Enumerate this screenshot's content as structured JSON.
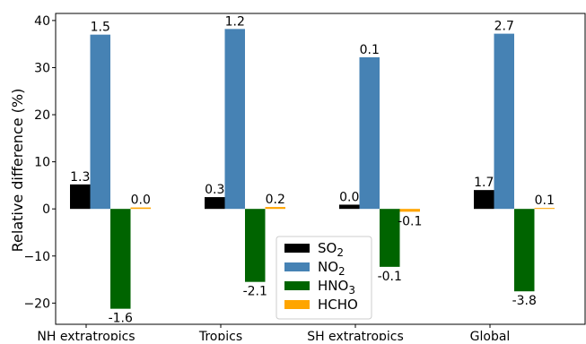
{
  "chart_data": {
    "type": "bar",
    "categories": [
      "NH extratropics",
      "Tropics",
      "SH extratropics",
      "Global"
    ],
    "ylabel": "Relative difference (%)",
    "ylim": [
      -24.5,
      41.5
    ],
    "yticks": [
      -20,
      -10,
      0,
      10,
      20,
      30,
      40
    ],
    "ytick_labels": [
      "−20",
      "−10",
      "0",
      "10",
      "20",
      "30",
      "40"
    ],
    "grid": false,
    "legend_position": "lower center",
    "series": [
      {
        "name": "SO2",
        "legend_base": "SO",
        "legend_sub": "2",
        "color": "#000000",
        "values": [
          5.2,
          2.5,
          0.9,
          4.0
        ],
        "labels": [
          "1.3",
          "0.3",
          "0.0",
          "1.7"
        ]
      },
      {
        "name": "NO2",
        "legend_base": "NO",
        "legend_sub": "2",
        "color": "#4682b4",
        "values": [
          37.0,
          38.2,
          32.2,
          37.2
        ],
        "labels": [
          "1.5",
          "1.2",
          "0.1",
          "2.7"
        ]
      },
      {
        "name": "HNO3",
        "legend_base": "HNO",
        "legend_sub": "3",
        "color": "#006400",
        "values": [
          -21.2,
          -15.5,
          -12.3,
          -17.5
        ],
        "labels": [
          "-1.6",
          "-2.1",
          "-0.1",
          "-3.8"
        ]
      },
      {
        "name": "HCHO",
        "legend_base": "HCHO",
        "legend_sub": "",
        "color": "#ffa500",
        "values": [
          0.3,
          0.4,
          -0.6,
          0.2
        ],
        "labels": [
          "0.0",
          "0.2",
          "-0.1",
          "0.1"
        ]
      }
    ]
  }
}
